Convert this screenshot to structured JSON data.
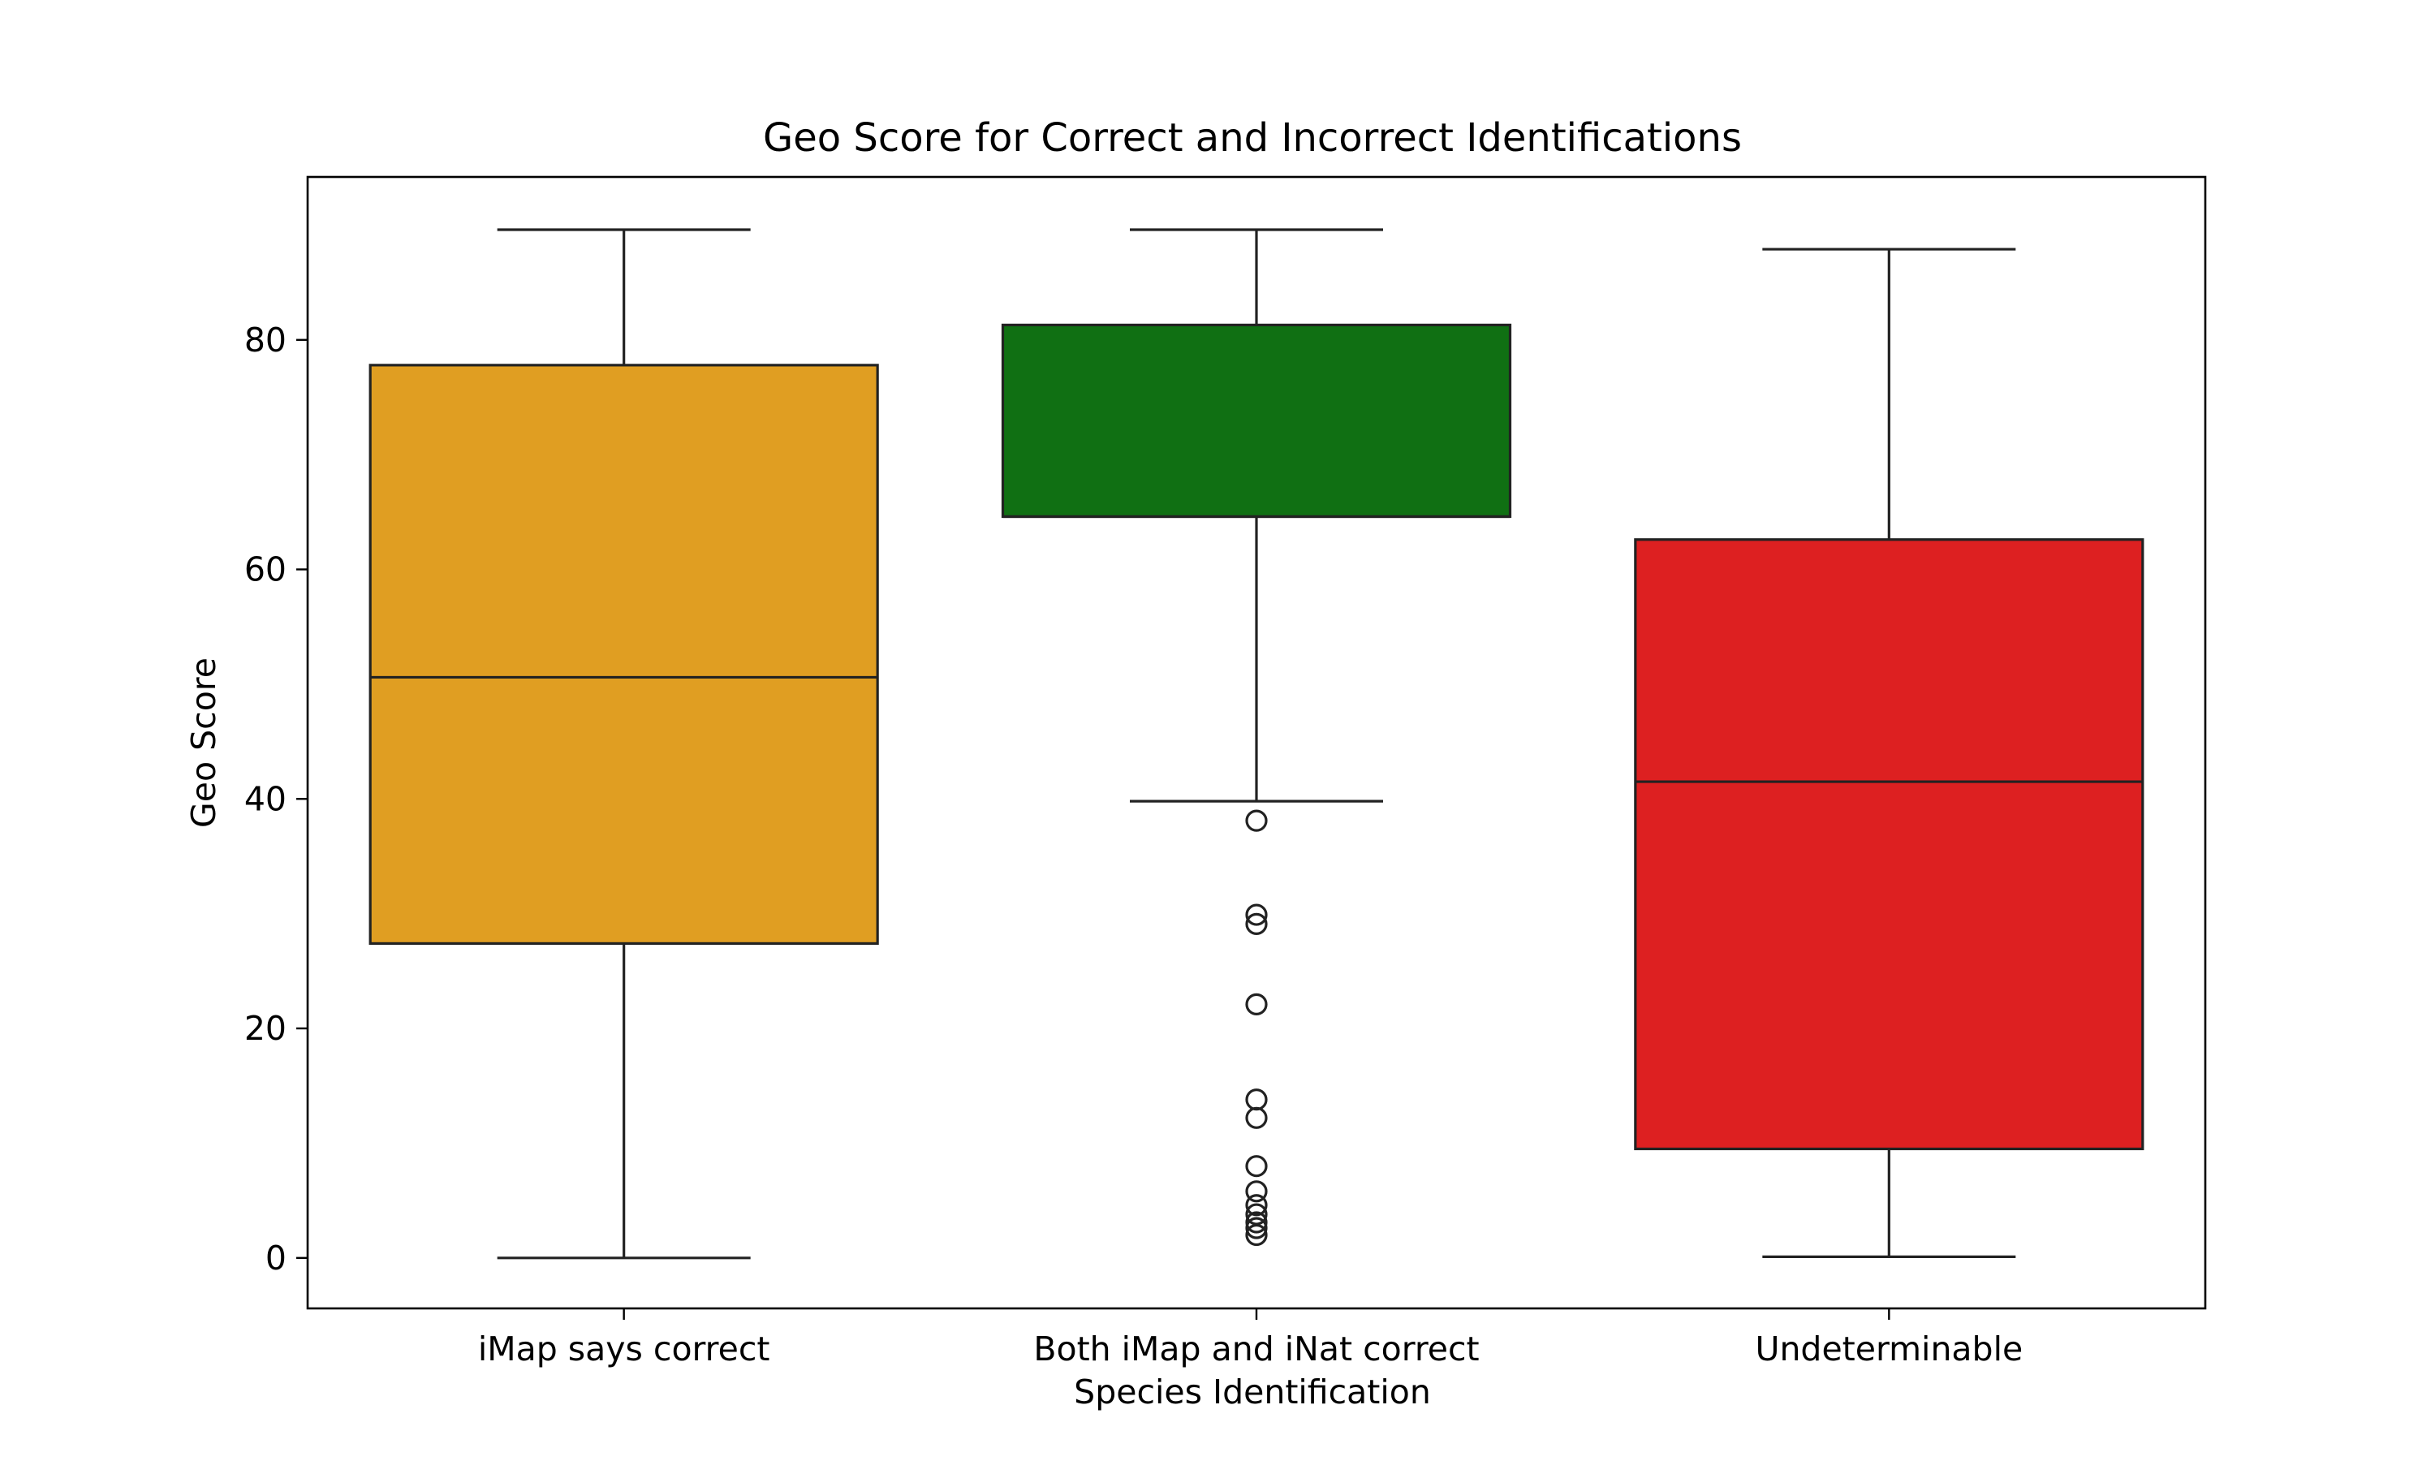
{
  "chart_data": {
    "type": "box",
    "title": "Geo Score for Correct and Incorrect Identifications",
    "xlabel": "Species Identification",
    "ylabel": "Geo Score",
    "ylim": [
      -4.4,
      94.2
    ],
    "yticks": [
      0,
      20,
      40,
      60,
      80
    ],
    "grid": false,
    "categories": [
      "iMap says correct",
      "Both iMap and iNat correct",
      "Undeterminable"
    ],
    "boxes": [
      {
        "category": "iMap says correct",
        "color": "#e09e22",
        "whisker_low": 0.0,
        "q1": 27.4,
        "median": 50.6,
        "q3": 77.8,
        "whisker_high": 89.6,
        "outliers": []
      },
      {
        "category": "Both iMap and iNat correct",
        "color": "#107013",
        "whisker_low": 39.8,
        "q1": 64.6,
        "median": 64.6,
        "q3": 81.3,
        "whisker_high": 89.6,
        "outliers": [
          38.1,
          29.9,
          29.1,
          22.1,
          13.8,
          12.2,
          8.0,
          5.8,
          4.6,
          3.8,
          3.1,
          2.6,
          2.0
        ]
      },
      {
        "category": "Undeterminable",
        "color": "#dd2021",
        "whisker_low": 0.1,
        "q1": 9.5,
        "median": 41.5,
        "q3": 62.6,
        "whisker_high": 87.9,
        "outliers": []
      }
    ]
  }
}
